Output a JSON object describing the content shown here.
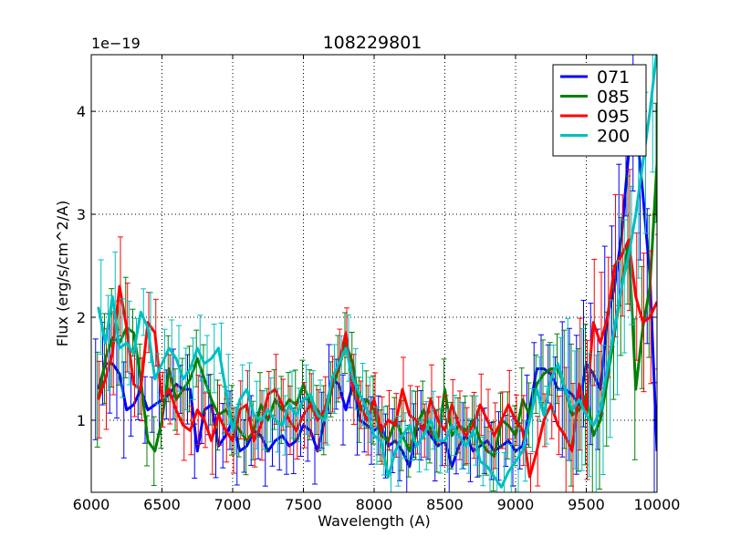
{
  "chart_data": {
    "type": "line",
    "title": "108229801",
    "xlabel": "Wavelength (A)",
    "ylabel": "Flux (erg/s/cm^2/A)",
    "y_scale_label": "1e−19",
    "xlim": [
      6000,
      10000
    ],
    "ylim": [
      0.3,
      4.55
    ],
    "x_ticks": [
      6000,
      6500,
      7000,
      7500,
      8000,
      8500,
      9000,
      9500,
      10000
    ],
    "x_tick_labels": [
      "6000",
      "6500",
      "7000",
      "7500",
      "8000",
      "8500",
      "9000",
      "9500",
      "10000"
    ],
    "y_ticks": [
      1,
      2,
      3,
      4
    ],
    "y_tick_labels": [
      "1",
      "2",
      "3",
      "4"
    ],
    "grid": true,
    "legend_position": "top-right",
    "series": [
      {
        "name": "071",
        "color": "#0000ff",
        "x": [
          6050,
          6100,
          6150,
          6200,
          6250,
          6300,
          6350,
          6400,
          6450,
          6500,
          6550,
          6600,
          6650,
          6700,
          6750,
          6800,
          6850,
          6900,
          6950,
          7000,
          7050,
          7100,
          7150,
          7200,
          7250,
          7300,
          7350,
          7400,
          7450,
          7500,
          7550,
          7600,
          7650,
          7700,
          7750,
          7800,
          7850,
          7900,
          7950,
          8000,
          8050,
          8100,
          8150,
          8200,
          8250,
          8300,
          8350,
          8400,
          8450,
          8500,
          8550,
          8600,
          8650,
          8700,
          8750,
          8800,
          8850,
          8900,
          8950,
          9000,
          9050,
          9100,
          9150,
          9200,
          9250,
          9300,
          9350,
          9400,
          9450,
          9500,
          9550,
          9600,
          9650,
          9700,
          9750,
          9800,
          9850,
          9900,
          9950,
          10000
        ],
        "y": [
          1.3,
          1.55,
          1.55,
          1.45,
          1.1,
          1.15,
          1.3,
          1.1,
          1.15,
          1.2,
          1.25,
          1.35,
          1.3,
          1.3,
          0.7,
          1.1,
          1.15,
          0.75,
          0.85,
          1.0,
          0.7,
          0.75,
          0.9,
          0.85,
          0.7,
          0.8,
          0.85,
          0.75,
          0.8,
          0.95,
          0.9,
          0.7,
          1.0,
          1.4,
          1.35,
          1.1,
          1.35,
          1.0,
          0.95,
          0.9,
          0.95,
          0.75,
          0.8,
          0.7,
          0.55,
          0.9,
          0.95,
          0.85,
          0.75,
          0.8,
          0.55,
          0.75,
          0.85,
          0.7,
          0.75,
          0.8,
          0.7,
          0.75,
          0.8,
          0.7,
          0.75,
          1.1,
          1.5,
          1.5,
          1.45,
          1.3,
          1.3,
          1.25,
          1.15,
          1.55,
          1.45,
          1.3,
          2.0,
          2.3,
          2.8,
          3.6,
          3.9,
          3.2,
          2.4,
          0.7
        ]
      },
      {
        "name": "085",
        "color": "#008000",
        "x": [
          6050,
          6100,
          6150,
          6200,
          6250,
          6300,
          6350,
          6400,
          6450,
          6500,
          6550,
          6600,
          6650,
          6700,
          6750,
          6800,
          6850,
          6900,
          6950,
          7000,
          7050,
          7100,
          7150,
          7200,
          7250,
          7300,
          7350,
          7400,
          7450,
          7500,
          7550,
          7600,
          7650,
          7700,
          7750,
          7800,
          7850,
          7900,
          7950,
          8000,
          8050,
          8100,
          8150,
          8200,
          8250,
          8300,
          8350,
          8400,
          8450,
          8500,
          8550,
          8600,
          8650,
          8700,
          8750,
          8800,
          8850,
          8900,
          8950,
          9000,
          9050,
          9100,
          9150,
          9200,
          9250,
          9300,
          9350,
          9400,
          9450,
          9500,
          9550,
          9600,
          9650,
          9700,
          9750,
          9800,
          9850,
          9900,
          9950,
          10000
        ],
        "y": [
          1.2,
          1.6,
          1.8,
          1.75,
          1.9,
          1.85,
          1.4,
          0.8,
          0.7,
          1.0,
          1.5,
          1.2,
          1.3,
          1.4,
          1.6,
          1.4,
          1.2,
          1.05,
          1.1,
          1.0,
          0.9,
          0.8,
          0.9,
          1.15,
          1.0,
          1.2,
          1.1,
          1.2,
          1.15,
          1.35,
          1.15,
          1.1,
          1.0,
          1.3,
          1.5,
          1.75,
          1.55,
          1.1,
          1.2,
          1.1,
          0.85,
          0.8,
          1.0,
          0.85,
          0.7,
          0.95,
          1.1,
          0.9,
          0.8,
          1.3,
          0.85,
          0.95,
          0.9,
          1.0,
          0.8,
          0.7,
          0.65,
          1.0,
          0.95,
          0.85,
          1.2,
          1.05,
          1.35,
          1.45,
          1.5,
          1.5,
          1.3,
          1.05,
          1.1,
          1.25,
          0.85,
          1.0,
          1.4,
          1.85,
          2.3,
          2.75,
          1.3,
          1.9,
          2.3,
          3.5
        ]
      },
      {
        "name": "095",
        "color": "#ff0000",
        "x": [
          6050,
          6100,
          6150,
          6200,
          6250,
          6300,
          6350,
          6400,
          6450,
          6500,
          6550,
          6600,
          6650,
          6700,
          6750,
          6800,
          6850,
          6900,
          6950,
          7000,
          7050,
          7100,
          7150,
          7200,
          7250,
          7300,
          7350,
          7400,
          7450,
          7500,
          7550,
          7600,
          7650,
          7700,
          7750,
          7800,
          7850,
          7900,
          7950,
          8000,
          8050,
          8100,
          8150,
          8200,
          8250,
          8300,
          8350,
          8400,
          8450,
          8500,
          8550,
          8600,
          8650,
          8700,
          8750,
          8800,
          8850,
          8900,
          8950,
          9000,
          9050,
          9100,
          9150,
          9200,
          9250,
          9300,
          9350,
          9400,
          9450,
          9500,
          9550,
          9600,
          9650,
          9700,
          9750,
          9800,
          9850,
          9900,
          9950,
          10000
        ],
        "y": [
          1.2,
          1.4,
          1.65,
          2.3,
          1.9,
          1.35,
          1.3,
          1.95,
          1.85,
          1.2,
          1.3,
          1.1,
          0.95,
          0.9,
          1.1,
          1.0,
          0.8,
          1.05,
          0.9,
          0.8,
          1.1,
          1.15,
          0.8,
          0.95,
          1.25,
          1.3,
          1.15,
          1.0,
          0.9,
          1.05,
          1.15,
          1.0,
          1.1,
          1.35,
          1.55,
          1.85,
          1.3,
          1.15,
          1.0,
          1.2,
          0.9,
          1.0,
          0.95,
          1.3,
          1.05,
          1.0,
          0.9,
          1.2,
          1.0,
          0.9,
          1.15,
          0.95,
          0.85,
          0.95,
          1.15,
          1.0,
          0.85,
          1.0,
          1.15,
          1.0,
          0.9,
          0.45,
          0.7,
          1.0,
          1.15,
          0.95,
          0.85,
          0.7,
          1.35,
          1.1,
          1.95,
          1.75,
          2.0,
          2.5,
          2.6,
          2.75,
          2.2,
          1.95,
          2.0,
          2.15
        ]
      },
      {
        "name": "200",
        "color": "#00bfbf",
        "x": [
          6050,
          6100,
          6150,
          6200,
          6250,
          6300,
          6350,
          6400,
          6450,
          6500,
          6550,
          6600,
          6650,
          6700,
          6750,
          6800,
          6850,
          6900,
          6950,
          7000,
          7050,
          7100,
          7150,
          7200,
          7250,
          7300,
          7350,
          7400,
          7450,
          7500,
          7550,
          7600,
          7650,
          7700,
          7750,
          7800,
          7850,
          7900,
          7950,
          8000,
          8050,
          8100,
          8150,
          8200,
          8250,
          8300,
          8350,
          8400,
          8450,
          8500,
          8550,
          8600,
          8650,
          8700,
          8750,
          8800,
          8850,
          8900,
          8950,
          9000,
          9050,
          9100,
          9150,
          9200,
          9250,
          9300,
          9350,
          9400,
          9450,
          9500,
          9550,
          9600,
          9650,
          9700,
          9750,
          9800,
          9850,
          9900,
          9950,
          10000
        ],
        "y": [
          2.1,
          1.75,
          2.2,
          1.7,
          1.75,
          1.65,
          2.05,
          1.9,
          1.4,
          1.55,
          1.7,
          1.6,
          1.4,
          1.5,
          1.7,
          1.55,
          1.6,
          1.7,
          1.3,
          0.9,
          1.2,
          1.3,
          1.05,
          1.0,
          1.1,
          1.0,
          0.95,
          1.15,
          1.05,
          1.2,
          1.25,
          1.05,
          1.0,
          1.4,
          1.55,
          1.7,
          1.4,
          1.25,
          1.1,
          0.85,
          0.8,
          0.45,
          0.7,
          0.85,
          0.95,
          0.75,
          0.85,
          1.0,
          0.8,
          0.8,
          0.95,
          0.85,
          0.75,
          0.9,
          0.6,
          0.55,
          0.45,
          0.35,
          0.5,
          0.6,
          0.7,
          1.0,
          1.3,
          1.05,
          1.4,
          1.55,
          1.3,
          1.1,
          1.2,
          1.05,
          0.95,
          1.1,
          1.5,
          1.9,
          2.3,
          2.6,
          3.0,
          3.5,
          4.0,
          4.6
        ]
      }
    ]
  }
}
